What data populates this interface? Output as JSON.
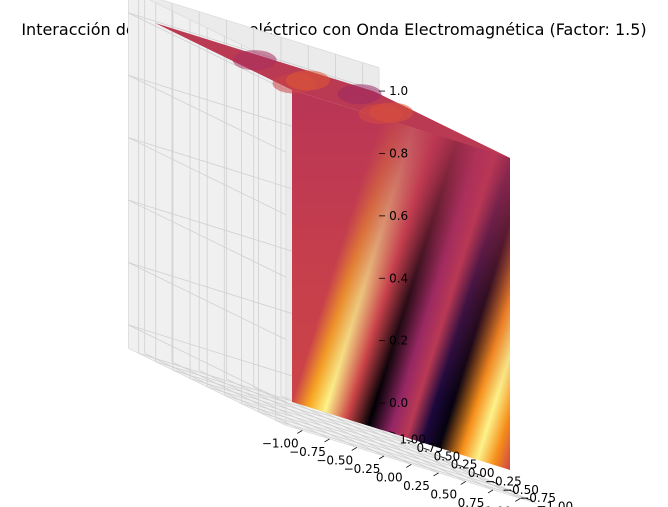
{
  "chart_data": {
    "type": "surface3d",
    "title": "Interacción del Campo Piezoeléctrico con Onda Electromagnética (Factor: 1.5)",
    "colormap": "inferno",
    "grid": true,
    "xlim": [
      -1.0,
      1.0
    ],
    "ylim": [
      -1.0,
      1.0
    ],
    "zlim": [
      0.0,
      1.0
    ],
    "x_ticks": [
      -1.0,
      -0.75,
      -0.5,
      -0.25,
      0.0,
      0.25,
      0.5,
      0.75,
      1.0
    ],
    "y_ticks": [
      -1.0,
      -0.75,
      -0.5,
      -0.25,
      0.0,
      0.25,
      0.5,
      0.75,
      1.0
    ],
    "z_ticks": [
      0.0,
      0.2,
      0.4,
      0.6,
      0.8,
      1.0
    ],
    "x_tick_labels": [
      "−1.00",
      "−0.75",
      "−0.50",
      "−0.25",
      "0.00",
      "0.25",
      "0.50",
      "0.75",
      "1.00"
    ],
    "y_tick_labels": [
      "−1.00",
      "−0.75",
      "−0.50",
      "−0.25",
      "0.00",
      "0.25",
      "0.50",
      "0.75",
      "1.00"
    ],
    "z_tick_labels": [
      "0.0",
      "0.2",
      "0.4",
      "0.6",
      "0.8",
      "1.0"
    ],
    "front_face_bottom_profile": [
      {
        "x": -1.0,
        "value": 0.55
      },
      {
        "x": -0.85,
        "value": 0.8
      },
      {
        "x": -0.7,
        "value": 0.97
      },
      {
        "x": -0.5,
        "value": 0.55
      },
      {
        "x": -0.3,
        "value": 0.0
      },
      {
        "x": -0.1,
        "value": 0.4
      },
      {
        "x": 0.05,
        "value": 0.5
      },
      {
        "x": 0.2,
        "value": 0.1
      },
      {
        "x": 0.35,
        "value": 0.02
      },
      {
        "x": 0.55,
        "value": 0.75
      },
      {
        "x": 0.7,
        "value": 0.97
      },
      {
        "x": 0.85,
        "value": 0.75
      },
      {
        "x": 1.0,
        "value": 0.55
      }
    ],
    "right_face_value": 0.5
  }
}
